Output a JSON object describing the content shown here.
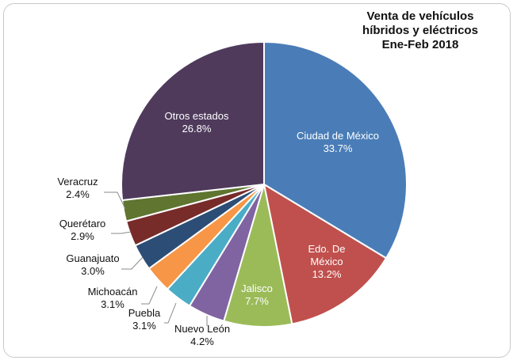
{
  "chart_data": {
    "type": "pie",
    "title_lines": [
      "Venta de vehículos",
      "híbridos y eléctricos",
      "Ene-Feb 2018"
    ],
    "slices": [
      {
        "label": "Ciudad de México",
        "label_lines": [
          "Ciudad de México"
        ],
        "value": 33.7,
        "value_text": "33.7%",
        "color": "#4a7db7"
      },
      {
        "label": "Edo. De México",
        "label_lines": [
          "Edo. De",
          "México"
        ],
        "value": 13.2,
        "value_text": "13.2%",
        "color": "#c0504d"
      },
      {
        "label": "Jalisco",
        "label_lines": [
          "Jalisco"
        ],
        "value": 7.7,
        "value_text": "7.7%",
        "color": "#9bbb59"
      },
      {
        "label": "Nuevo León",
        "label_lines": [
          "Nuevo León"
        ],
        "value": 4.2,
        "value_text": "4.2%",
        "color": "#8064a2"
      },
      {
        "label": "Puebla",
        "label_lines": [
          "Puebla"
        ],
        "value": 3.1,
        "value_text": "3.1%",
        "color": "#4bacc6"
      },
      {
        "label": "Michoacán",
        "label_lines": [
          "Michoacán"
        ],
        "value": 3.1,
        "value_text": "3.1%",
        "color": "#f79646"
      },
      {
        "label": "Guanajuato",
        "label_lines": [
          "Guanajuato"
        ],
        "value": 3.0,
        "value_text": "3.0%",
        "color": "#2c4d75"
      },
      {
        "label": "Querétaro",
        "label_lines": [
          "Querétaro"
        ],
        "value": 2.9,
        "value_text": "2.9%",
        "color": "#772c2a"
      },
      {
        "label": "Veracruz",
        "label_lines": [
          "Veracruz"
        ],
        "value": 2.4,
        "value_text": "2.4%",
        "color": "#5f7530"
      },
      {
        "label": "Otros estados",
        "label_lines": [
          "Otros estados"
        ],
        "value": 26.8,
        "value_text": "26.8%",
        "color": "#4f3a5c"
      }
    ],
    "legend": "none"
  }
}
